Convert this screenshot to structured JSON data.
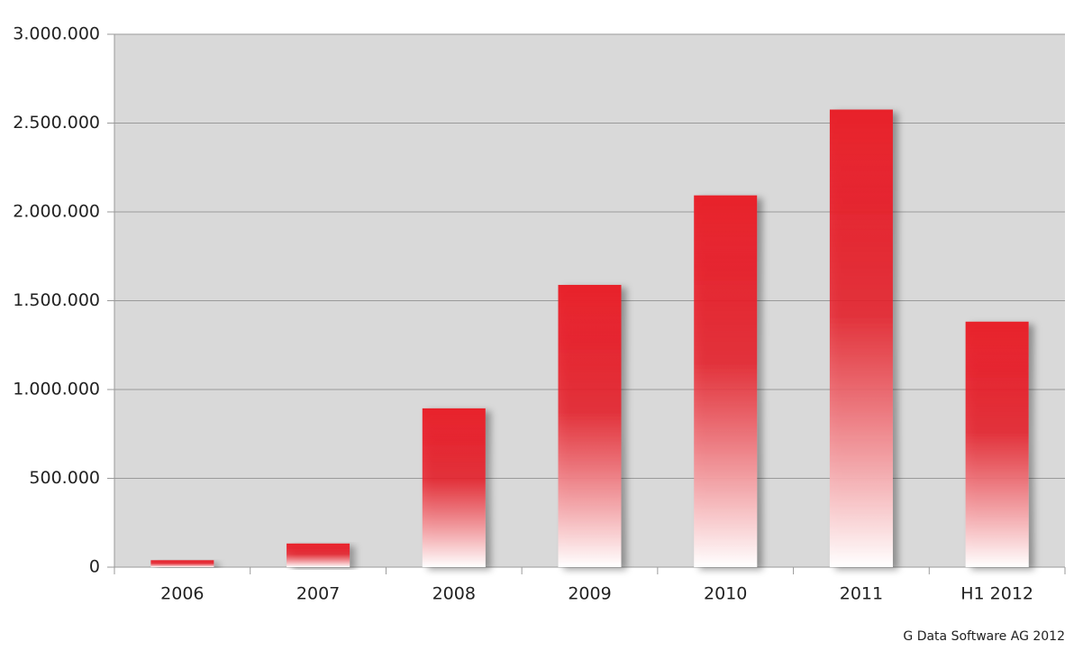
{
  "chart_data": {
    "type": "bar",
    "categories": [
      "2006",
      "2007",
      "2008",
      "2009",
      "2010",
      "2011",
      "H1 2012"
    ],
    "values": [
      39000,
      133000,
      894000,
      1589000,
      2093000,
      2576000,
      1382000
    ],
    "color": "#e8202a",
    "ylim": [
      0,
      3000000
    ],
    "yticks": [
      0,
      {
        "value": 500000,
        "label": "500.000"
      },
      {
        "value": 1000000,
        "label": "1.000.000"
      },
      {
        "value": 1500000,
        "label": "1.500.000"
      },
      {
        "value": 2000000,
        "label": "2.000.000"
      },
      {
        "value": 2500000,
        "label": "2.500.000"
      },
      {
        "value": 3000000,
        "label": "3.000.000"
      }
    ],
    "grid": true,
    "source": "G Data Software AG 2012"
  }
}
